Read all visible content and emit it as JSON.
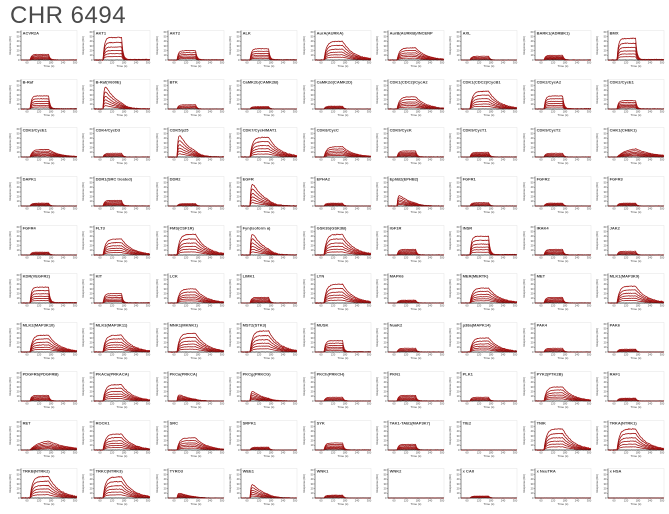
{
  "page": {
    "title": "CHR 6494"
  },
  "colors": {
    "title_text": "#4a4a4a",
    "curve_red": "#cc1414",
    "curve_dark": "#1a1010",
    "axis": "#222222",
    "frame": "#d8d8d8",
    "label_text": "#3a3a3a"
  },
  "chart_data": {
    "type": "line",
    "title": "CHR 6494",
    "description": "Grid of 90 SPR binding sensorgrams (multi-concentration overlaid traces per kinase)",
    "grid": {
      "rows": 10,
      "cols": 9
    },
    "xlabel": "Time (s)",
    "ylabel": "Response (RU)",
    "x_ticks": [
      60,
      120,
      180,
      240,
      300
    ],
    "y_ticks": [
      0,
      10,
      20,
      30,
      40,
      50,
      60
    ],
    "x_range": [
      30,
      310
    ],
    "y_range": [
      0,
      62
    ],
    "association_start_s": 75,
    "dissociation_start_s": 168,
    "traces_per_plot": 6,
    "legend": "none",
    "plots": [
      {
        "label": "ACVR2A",
        "shape": "square",
        "max_ru": 12
      },
      {
        "label": "AKT1",
        "shape": "square",
        "max_ru": 48
      },
      {
        "label": "AKT2",
        "shape": "square",
        "max_ru": 20
      },
      {
        "label": "ALK",
        "shape": "square",
        "max_ru": 24
      },
      {
        "label": "AurA(AURKA)",
        "shape": "decay",
        "max_ru": 40
      },
      {
        "label": "AurB(AURKB)/INCENP",
        "shape": "decay",
        "max_ru": 26
      },
      {
        "label": "AXL",
        "shape": "square",
        "max_ru": 8
      },
      {
        "label": "BARK1(ADRBK1)",
        "shape": "square",
        "max_ru": 10
      },
      {
        "label": "BMX",
        "shape": "square",
        "max_ru": 46
      },
      {
        "label": "B-Raf",
        "shape": "square",
        "max_ru": 28
      },
      {
        "label": "B-Raf(V600E)",
        "shape": "spike",
        "max_ru": 46
      },
      {
        "label": "BTK",
        "shape": "square",
        "max_ru": 9
      },
      {
        "label": "CaMK2b(CAMK2B)",
        "shape": "square",
        "max_ru": 5
      },
      {
        "label": "CaMK2d(CAMK2D)",
        "shape": "square",
        "max_ru": 6
      },
      {
        "label": "CDK1(CDC2)/CycA2",
        "shape": "decay",
        "max_ru": 26
      },
      {
        "label": "CDK1(CDC2)/CycB1",
        "shape": "decay",
        "max_ru": 38
      },
      {
        "label": "CDK2/CycA2",
        "shape": "square",
        "max_ru": 28
      },
      {
        "label": "CDK2/CycE1",
        "shape": "square",
        "max_ru": 18
      },
      {
        "label": "CDK3/CycE1",
        "shape": "decay",
        "max_ru": 16
      },
      {
        "label": "CDK4/CycD3",
        "shape": "square",
        "max_ru": 8
      },
      {
        "label": "CDK5/p25",
        "shape": "spike",
        "max_ru": 45
      },
      {
        "label": "CDK7/CycH/MAT1",
        "shape": "decay",
        "max_ru": 42
      },
      {
        "label": "CDK8/CycC",
        "shape": "decay",
        "max_ru": 22
      },
      {
        "label": "CDK9/CycK",
        "shape": "square",
        "max_ru": 13
      },
      {
        "label": "CDK9/CycT1",
        "shape": "square",
        "max_ru": 10
      },
      {
        "label": "CDK9/CycT2",
        "shape": "square",
        "max_ru": 8
      },
      {
        "label": "CHK1(CHEK1)",
        "shape": "hump",
        "max_ru": 20
      },
      {
        "label": "DAPK1",
        "shape": "square",
        "max_ru": 6
      },
      {
        "label": "DDR1(SRC treated)",
        "shape": "square",
        "max_ru": 12
      },
      {
        "label": "DDR2",
        "shape": "square",
        "max_ru": 5
      },
      {
        "label": "EGFR",
        "shape": "spike",
        "max_ru": 46
      },
      {
        "label": "EPHA2",
        "shape": "square",
        "max_ru": 6
      },
      {
        "label": "EphB2(EPHB2)",
        "shape": "spike",
        "max_ru": 22
      },
      {
        "label": "FGFR1",
        "shape": "square",
        "max_ru": 7
      },
      {
        "label": "FGFR2",
        "shape": "square",
        "max_ru": 6
      },
      {
        "label": "FGFR3",
        "shape": "square",
        "max_ru": 6
      },
      {
        "label": "FGFR4",
        "shape": "square",
        "max_ru": 6
      },
      {
        "label": "FLT3",
        "shape": "decay",
        "max_ru": 34
      },
      {
        "label": "FMS(CSF1R)",
        "shape": "decay",
        "max_ru": 44
      },
      {
        "label": "Fyn(isoform a)",
        "shape": "spike",
        "max_ru": 44
      },
      {
        "label": "GSK3b(GSK3B)",
        "shape": "decay",
        "max_ru": 44
      },
      {
        "label": "IGF1R",
        "shape": "square",
        "max_ru": 12
      },
      {
        "label": "INSR",
        "shape": "square",
        "max_ru": 40
      },
      {
        "label": "IRAK4",
        "shape": "square",
        "max_ru": 12
      },
      {
        "label": "JAK2",
        "shape": "square",
        "max_ru": 8
      },
      {
        "label": "KDR(VEGFR2)",
        "shape": "square",
        "max_ru": 34
      },
      {
        "label": "KIT",
        "shape": "square",
        "max_ru": 20
      },
      {
        "label": "LCK",
        "shape": "decay",
        "max_ru": 30
      },
      {
        "label": "LIMK1",
        "shape": "square",
        "max_ru": 12
      },
      {
        "label": "LYN",
        "shape": "decay",
        "max_ru": 40
      },
      {
        "label": "MAPK6",
        "shape": "square",
        "max_ru": 6
      },
      {
        "label": "MER(MERTK)",
        "shape": "decay",
        "max_ru": 32
      },
      {
        "label": "MET",
        "shape": "square",
        "max_ru": 12
      },
      {
        "label": "MLK1(MAP3K9)",
        "shape": "decay",
        "max_ru": 36
      },
      {
        "label": "MLK2(MAP3K10)",
        "shape": "decay",
        "max_ru": 36
      },
      {
        "label": "MLK3(MAP3K11)",
        "shape": "decay",
        "max_ru": 36
      },
      {
        "label": "MNK1(MKNK1)",
        "shape": "decay",
        "max_ru": 40
      },
      {
        "label": "MST2(STK3)",
        "shape": "decay",
        "max_ru": 45
      },
      {
        "label": "MUSK",
        "shape": "square",
        "max_ru": 24
      },
      {
        "label": "NuaK2",
        "shape": "square",
        "max_ru": 8
      },
      {
        "label": "p38a(MAPK14)",
        "shape": "decay",
        "max_ru": 30
      },
      {
        "label": "PAK4",
        "shape": "square",
        "max_ru": 8
      },
      {
        "label": "PAK6",
        "shape": "square",
        "max_ru": 6
      },
      {
        "label": "PDGFRb(PDGFRB)",
        "shape": "square",
        "max_ru": 12
      },
      {
        "label": "PKACa(PRKACA)",
        "shape": "decay",
        "max_ru": 35
      },
      {
        "label": "PKCa(PRKCA)",
        "shape": "spike",
        "max_ru": 13
      },
      {
        "label": "PKCg(PRKCG)",
        "shape": "spike",
        "max_ru": 20
      },
      {
        "label": "PKCh(PRKCH)",
        "shape": "square",
        "max_ru": 8
      },
      {
        "label": "PKN1",
        "shape": "square",
        "max_ru": 12
      },
      {
        "label": "PLK1",
        "shape": "square",
        "max_ru": 8
      },
      {
        "label": "PYK2(PTK2B)",
        "shape": "decay",
        "max_ru": 30
      },
      {
        "label": "RAF1",
        "shape": "square",
        "max_ru": 6
      },
      {
        "label": "RET",
        "shape": "hump",
        "max_ru": 22
      },
      {
        "label": "ROCK1",
        "shape": "decay",
        "max_ru": 34
      },
      {
        "label": "SRC",
        "shape": "decay",
        "max_ru": 26
      },
      {
        "label": "SRPK1",
        "shape": "square",
        "max_ru": 6
      },
      {
        "label": "SYK",
        "shape": "square",
        "max_ru": 15
      },
      {
        "label": "TAK1-TAB1(MAP3K7)",
        "shape": "square",
        "max_ru": 12
      },
      {
        "label": "TIE2",
        "shape": "flat",
        "max_ru": 3
      },
      {
        "label": "TNIK",
        "shape": "decay",
        "max_ru": 45
      },
      {
        "label": "TRKA(NTRK1)",
        "shape": "decay",
        "max_ru": 45
      },
      {
        "label": "TRKB(NTRK2)",
        "shape": "decay",
        "max_ru": 46
      },
      {
        "label": "TRKC(NTRK3)",
        "shape": "decay",
        "max_ru": 45
      },
      {
        "label": "TYRO3",
        "shape": "spike",
        "max_ru": 10
      },
      {
        "label": "WEE1",
        "shape": "spike",
        "max_ru": 28
      },
      {
        "label": "WNK1",
        "shape": "square",
        "max_ru": 6
      },
      {
        "label": "WNK2",
        "shape": "flat",
        "max_ru": 3
      },
      {
        "label": "x CAII",
        "shape": "square",
        "max_ru": 4
      },
      {
        "label": "x NeuTRA",
        "shape": "flat",
        "max_ru": 2
      },
      {
        "label": "x HSA",
        "shape": "flat",
        "max_ru": 2
      }
    ]
  }
}
